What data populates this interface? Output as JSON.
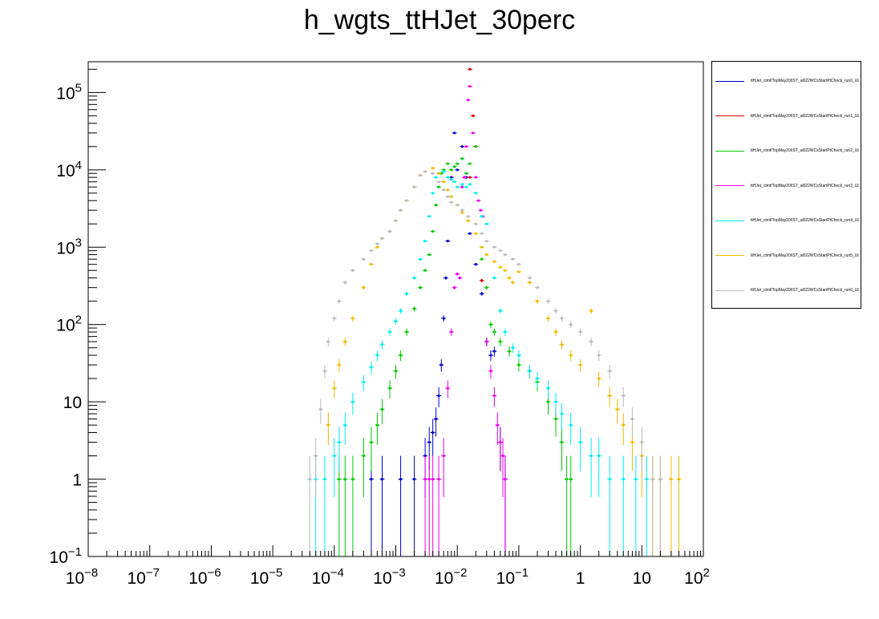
{
  "chart_data": {
    "type": "scatter",
    "title": "h_wgts_ttHJet_30perc",
    "xlabel": "",
    "ylabel": "",
    "x_scale": "log",
    "y_scale": "log",
    "xlim": [
      1e-08,
      100
    ],
    "ylim": [
      0.1,
      250000
    ],
    "grid": false,
    "legend_position": "right",
    "x_tick_labels": [
      {
        "base": "10",
        "exp": "−8",
        "value": 1e-08
      },
      {
        "base": "10",
        "exp": "−7",
        "value": 1e-07
      },
      {
        "base": "10",
        "exp": "−6",
        "value": 1e-06
      },
      {
        "base": "10",
        "exp": "−5",
        "value": 1e-05
      },
      {
        "base": "10",
        "exp": "−4",
        "value": 0.0001
      },
      {
        "base": "10",
        "exp": "−3",
        "value": 0.001
      },
      {
        "base": "10",
        "exp": "−2",
        "value": 0.01
      },
      {
        "base": "10",
        "exp": "−1",
        "value": 0.1
      },
      {
        "base": "1",
        "exp": "",
        "value": 1
      },
      {
        "base": "10",
        "exp": "",
        "value": 10
      },
      {
        "base": "10",
        "exp": "2",
        "value": 100
      }
    ],
    "y_tick_labels": [
      {
        "base": "10",
        "exp": "−1",
        "value": 0.1
      },
      {
        "base": "1",
        "exp": "",
        "value": 1
      },
      {
        "base": "10",
        "exp": "",
        "value": 10
      },
      {
        "base": "10",
        "exp": "2",
        "value": 100
      },
      {
        "base": "10",
        "exp": "3",
        "value": 1000
      },
      {
        "base": "10",
        "exp": "4",
        "value": 10000
      },
      {
        "base": "10",
        "exp": "5",
        "value": 100000
      }
    ],
    "series": [
      {
        "name": "ttHJet_ctmf/TopMay20/IST_al022WCsStartPtCheck_run0_UL17",
        "color": "#0000cc",
        "points": [
          [
            0.0004,
            1
          ],
          [
            0.0006,
            1
          ],
          [
            0.0012,
            1
          ],
          [
            0.002,
            1
          ],
          [
            0.003,
            2
          ],
          [
            0.0035,
            3
          ],
          [
            0.004,
            4
          ],
          [
            0.0045,
            6
          ],
          [
            0.005,
            12
          ],
          [
            0.0055,
            30
          ],
          [
            0.006,
            120
          ],
          [
            0.0065,
            400
          ],
          [
            0.007,
            1200
          ],
          [
            0.008,
            8000
          ],
          [
            0.009,
            30000
          ],
          [
            0.01,
            10000
          ],
          [
            0.012,
            20000
          ],
          [
            0.014,
            8000
          ],
          [
            0.016,
            1500
          ],
          [
            0.02,
            600
          ],
          [
            0.025,
            250
          ],
          [
            0.03,
            60
          ],
          [
            0.035,
            40
          ],
          [
            0.04,
            45
          ],
          [
            0.05,
            3
          ],
          [
            0.06,
            1
          ]
        ]
      },
      {
        "name": "ttHJet_ctmf/TopMay20/IST_al022WCsStartPtCheck_run1_UL17",
        "color": "#dd0000",
        "points": [
          [
            0.016,
            200000
          ],
          [
            0.018,
            50000
          ],
          [
            0.02,
            20000
          ],
          [
            0.025,
            370
          ],
          [
            0.016,
            8000
          ]
        ]
      },
      {
        "name": "ttHJet_ctmf/TopMay20/IST_al022WCsStartPtCheck_run2_UL17",
        "color": "#00cc00",
        "points": [
          [
            0.00012,
            1
          ],
          [
            0.00015,
            1
          ],
          [
            0.0002,
            1
          ],
          [
            0.0003,
            2
          ],
          [
            0.0004,
            3
          ],
          [
            0.0005,
            5
          ],
          [
            0.0006,
            8
          ],
          [
            0.0008,
            15
          ],
          [
            0.001,
            25
          ],
          [
            0.0012,
            40
          ],
          [
            0.0015,
            80
          ],
          [
            0.002,
            160
          ],
          [
            0.0025,
            300
          ],
          [
            0.003,
            500
          ],
          [
            0.0035,
            800
          ],
          [
            0.004,
            1600
          ],
          [
            0.0045,
            3500
          ],
          [
            0.005,
            6000
          ],
          [
            0.0055,
            9000
          ],
          [
            0.006,
            10000
          ],
          [
            0.007,
            12000
          ],
          [
            0.008,
            10000
          ],
          [
            0.009,
            11000
          ],
          [
            0.01,
            12000
          ],
          [
            0.012,
            14000
          ],
          [
            0.014,
            9000
          ],
          [
            0.016,
            12000
          ],
          [
            0.02,
            20000
          ],
          [
            0.025,
            700
          ],
          [
            0.03,
            300
          ],
          [
            0.035,
            100
          ],
          [
            0.04,
            80
          ],
          [
            0.05,
            60
          ],
          [
            0.07,
            45
          ],
          [
            0.1,
            30
          ],
          [
            0.15,
            25
          ],
          [
            0.2,
            18
          ],
          [
            0.3,
            10
          ],
          [
            0.4,
            6
          ],
          [
            0.5,
            3
          ],
          [
            0.6,
            1
          ],
          [
            0.7,
            1
          ]
        ]
      },
      {
        "name": "ttHJet_ctmf/TopMay20/IST_al022WCsStartPtCheck_run3_UL17",
        "color": "#ee00ee",
        "points": [
          [
            0.003,
            1
          ],
          [
            0.0035,
            1
          ],
          [
            0.004,
            1
          ],
          [
            0.005,
            1
          ],
          [
            0.006,
            2
          ],
          [
            0.007,
            15
          ],
          [
            0.008,
            80
          ],
          [
            0.009,
            300
          ],
          [
            0.01,
            450
          ],
          [
            0.011,
            400
          ],
          [
            0.012,
            6000
          ],
          [
            0.013,
            8000
          ],
          [
            0.014,
            20000
          ],
          [
            0.015,
            80000
          ],
          [
            0.016,
            120000
          ],
          [
            0.018,
            30000
          ],
          [
            0.02,
            8000
          ],
          [
            0.022,
            4000
          ],
          [
            0.024,
            3000
          ],
          [
            0.026,
            2500
          ],
          [
            0.03,
            60
          ],
          [
            0.035,
            25
          ],
          [
            0.04,
            12
          ],
          [
            0.045,
            5
          ],
          [
            0.05,
            3
          ],
          [
            0.055,
            2
          ],
          [
            0.06,
            1
          ]
        ]
      },
      {
        "name": "ttHJet_ctmf/TopMay20/IST_al022WCsStartPtCheck_run4_UL17",
        "color": "#00eeee",
        "points": [
          [
            5e-05,
            1
          ],
          [
            7e-05,
            1
          ],
          [
            0.0001,
            2
          ],
          [
            0.00012,
            3
          ],
          [
            0.00015,
            5
          ],
          [
            0.0002,
            10
          ],
          [
            0.0003,
            18
          ],
          [
            0.0004,
            28
          ],
          [
            0.0005,
            40
          ],
          [
            0.0006,
            55
          ],
          [
            0.0008,
            80
          ],
          [
            0.001,
            110
          ],
          [
            0.0012,
            150
          ],
          [
            0.0015,
            250
          ],
          [
            0.002,
            400
          ],
          [
            0.0025,
            700
          ],
          [
            0.003,
            1200
          ],
          [
            0.0035,
            2500
          ],
          [
            0.004,
            5000
          ],
          [
            0.0045,
            8000
          ],
          [
            0.005,
            9000
          ],
          [
            0.006,
            9500
          ],
          [
            0.007,
            8000
          ],
          [
            0.008,
            7500
          ],
          [
            0.009,
            7000
          ],
          [
            0.01,
            6000
          ],
          [
            0.012,
            6500
          ],
          [
            0.014,
            6000
          ],
          [
            0.016,
            6500
          ],
          [
            0.02,
            5000
          ],
          [
            0.025,
            2500
          ],
          [
            0.03,
            2000
          ],
          [
            0.04,
            400
          ],
          [
            0.05,
            150
          ],
          [
            0.06,
            80
          ],
          [
            0.08,
            50
          ],
          [
            0.1,
            40
          ],
          [
            0.15,
            25
          ],
          [
            0.2,
            20
          ],
          [
            0.3,
            15
          ],
          [
            0.4,
            10
          ],
          [
            0.5,
            7
          ],
          [
            0.7,
            5
          ],
          [
            1,
            3
          ],
          [
            1.5,
            2
          ],
          [
            2,
            2
          ],
          [
            3,
            1
          ],
          [
            5,
            1
          ],
          [
            8,
            1
          ],
          [
            12,
            1
          ],
          [
            20,
            1
          ]
        ]
      },
      {
        "name": "ttHJet_ctmf/TopMay20/IST_al022WCsStartPtCheck_run5_UL17",
        "color": "#eebb00",
        "points": [
          [
            8e-05,
            5
          ],
          [
            0.0001,
            15
          ],
          [
            0.00012,
            30
          ],
          [
            0.00015,
            60
          ],
          [
            0.0002,
            120
          ],
          [
            0.0003,
            300
          ],
          [
            0.0004,
            600
          ],
          [
            0.0005,
            1000
          ],
          [
            0.0006,
            1300
          ],
          [
            0.0008,
            1600
          ],
          [
            0.001,
            2200
          ],
          [
            0.0012,
            3000
          ],
          [
            0.0015,
            4000
          ],
          [
            0.002,
            6000
          ],
          [
            0.0025,
            8500
          ],
          [
            0.003,
            9500
          ],
          [
            0.004,
            10500
          ],
          [
            0.005,
            9000
          ],
          [
            0.006,
            7000
          ],
          [
            0.007,
            5500
          ],
          [
            0.008,
            4500
          ],
          [
            0.01,
            3500
          ],
          [
            0.012,
            2800
          ],
          [
            0.015,
            2200
          ],
          [
            0.02,
            1500
          ],
          [
            0.025,
            1000
          ],
          [
            0.03,
            800
          ],
          [
            0.04,
            650
          ],
          [
            0.05,
            550
          ],
          [
            0.06,
            500
          ],
          [
            0.07,
            400
          ],
          [
            0.08,
            350
          ],
          [
            0.1,
            480
          ],
          [
            0.15,
            350
          ],
          [
            0.2,
            200
          ],
          [
            0.3,
            120
          ],
          [
            0.4,
            80
          ],
          [
            0.5,
            55
          ],
          [
            0.7,
            40
          ],
          [
            1,
            30
          ],
          [
            1.5,
            150
          ],
          [
            2,
            20
          ],
          [
            3,
            12
          ],
          [
            4,
            8
          ],
          [
            5,
            5
          ],
          [
            7,
            3
          ],
          [
            10,
            2
          ],
          [
            15,
            1
          ],
          [
            20,
            1
          ],
          [
            30,
            1
          ],
          [
            40,
            1
          ]
        ]
      },
      {
        "name": "ttHJet_ctmf/TopMay20/IST_al022WCsStartPtCheck_run6_UL17",
        "color": "#bbbbbb",
        "points": [
          [
            4e-05,
            1
          ],
          [
            5e-05,
            2
          ],
          [
            6e-05,
            8
          ],
          [
            7e-05,
            25
          ],
          [
            8e-05,
            60
          ],
          [
            0.0001,
            120
          ],
          [
            0.00012,
            200
          ],
          [
            0.00015,
            350
          ],
          [
            0.0002,
            500
          ],
          [
            0.0003,
            700
          ],
          [
            0.0004,
            900
          ],
          [
            0.0005,
            1100
          ],
          [
            0.0006,
            1300
          ],
          [
            0.0008,
            1600
          ],
          [
            0.001,
            2200
          ],
          [
            0.0012,
            3000
          ],
          [
            0.0015,
            4000
          ],
          [
            0.002,
            6000
          ],
          [
            0.0025,
            8500
          ],
          [
            0.003,
            9500
          ],
          [
            0.004,
            9000
          ],
          [
            0.005,
            7000
          ],
          [
            0.006,
            5500
          ],
          [
            0.007,
            4500
          ],
          [
            0.008,
            3800
          ],
          [
            0.01,
            3500
          ],
          [
            0.012,
            3000
          ],
          [
            0.015,
            2500
          ],
          [
            0.02,
            2000
          ],
          [
            0.025,
            1500
          ],
          [
            0.03,
            1200
          ],
          [
            0.04,
            1000
          ],
          [
            0.05,
            900
          ],
          [
            0.06,
            800
          ],
          [
            0.08,
            700
          ],
          [
            0.1,
            600
          ],
          [
            0.15,
            400
          ],
          [
            0.2,
            300
          ],
          [
            0.3,
            200
          ],
          [
            0.4,
            150
          ],
          [
            0.5,
            120
          ],
          [
            0.7,
            100
          ],
          [
            1,
            80
          ],
          [
            1.5,
            60
          ],
          [
            2,
            40
          ],
          [
            3,
            25
          ],
          [
            5,
            12
          ],
          [
            7,
            6
          ],
          [
            10,
            3
          ],
          [
            15,
            1
          ],
          [
            20,
            1
          ]
        ]
      }
    ]
  },
  "colors": {
    "axis": "#000000",
    "background": "#ffffff"
  }
}
